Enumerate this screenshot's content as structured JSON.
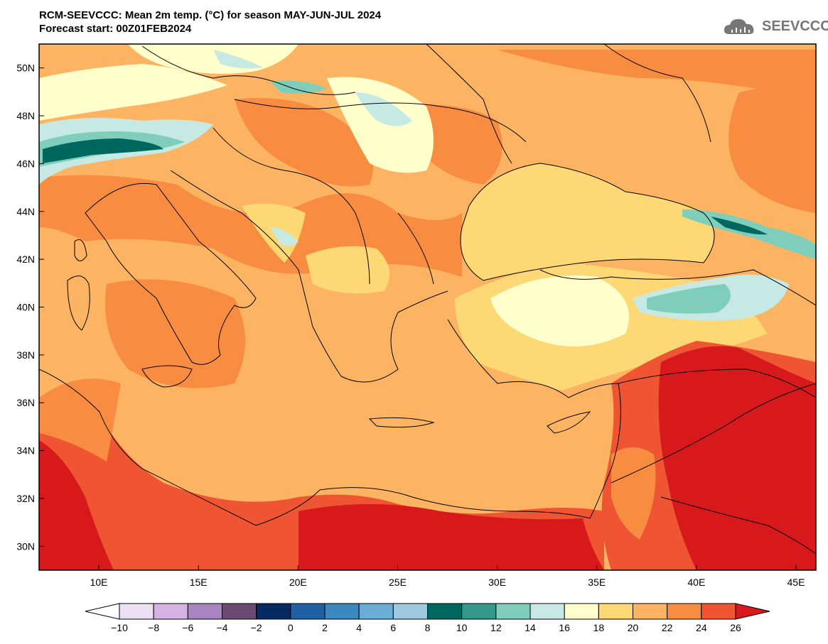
{
  "title": {
    "line1": "RCM-SEEVCCC: Mean 2m temp. (°C) for season MAY-JUN-JUL 2024",
    "line2": "Forecast start: 00Z01FEB2024"
  },
  "logo": {
    "text": "SEEVCCC",
    "icon": "cloud-icon"
  },
  "map": {
    "lat_range": [
      29,
      51
    ],
    "lon_range": [
      7,
      46
    ],
    "lat_ticks": [
      "50N",
      "48N",
      "46N",
      "44N",
      "42N",
      "40N",
      "38N",
      "36N",
      "34N",
      "32N",
      "30N"
    ],
    "lon_ticks": [
      "10E",
      "15E",
      "20E",
      "25E",
      "30E",
      "35E",
      "40E",
      "45E"
    ]
  },
  "colorbar": {
    "labels": [
      "−10",
      "−8",
      "−6",
      "−4",
      "−2",
      "0",
      "2",
      "4",
      "6",
      "8",
      "10",
      "12",
      "14",
      "16",
      "18",
      "20",
      "22",
      "24",
      "26"
    ],
    "colors": [
      "#ffffff",
      "#ece0f2",
      "#d5b2e3",
      "#a885c2",
      "#6a4a72",
      "#062a62",
      "#1f5fa3",
      "#3d88c0",
      "#6aaed6",
      "#9ecae1",
      "#00675e",
      "#34988a",
      "#7fcdbb",
      "#c7e9e4",
      "#ffffcc",
      "#fed875",
      "#fdb462",
      "#f88d42",
      "#ef5533",
      "#d7191c"
    ]
  }
}
